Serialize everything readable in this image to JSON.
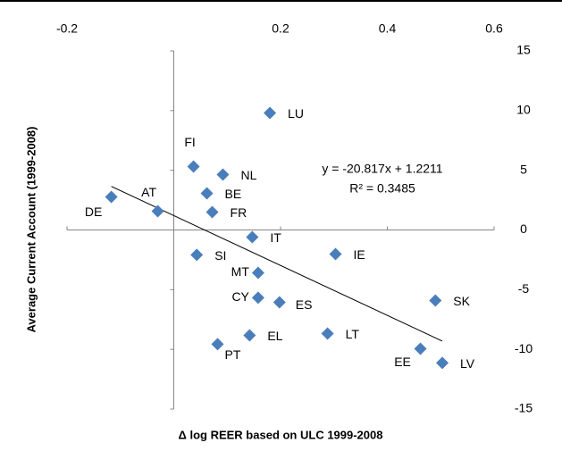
{
  "chart_data": {
    "type": "scatter",
    "x_label": "Δ log REER based on ULC 1999-2008",
    "y_label": "Average Current Account (1999-2008)",
    "annotations": [
      "y = -20.817x + 1.2211",
      "R² = 0.3485"
    ],
    "labels": [
      "DE",
      "AT",
      "FI",
      "NL",
      "BE",
      "FR",
      "LU",
      "IT",
      "SI",
      "IE",
      "MT",
      "CY",
      "ES",
      "SK",
      "PT",
      "EL",
      "LT",
      "EE",
      "LV"
    ],
    "x": [
      -0.117,
      -0.03,
      0.037,
      0.092,
      0.062,
      0.072,
      0.18,
      0.147,
      0.043,
      0.303,
      0.158,
      0.158,
      0.198,
      0.49,
      0.082,
      0.142,
      0.288,
      0.462,
      0.503
    ],
    "y": [
      2.77,
      1.57,
      5.31,
      4.64,
      3.07,
      1.5,
      9.8,
      -0.6,
      -2.09,
      -2.02,
      -3.59,
      -5.68,
      -6.06,
      -5.91,
      -9.57,
      -8.83,
      -8.68,
      -9.95,
      -11.14
    ],
    "color": "#4a7ebb",
    "xlim": [
      -0.2,
      0.6
    ],
    "xticks": [
      -0.2,
      0.2,
      0.4,
      0.6
    ],
    "ylim": [
      -15,
      15
    ],
    "yticks": [
      15,
      10,
      5,
      0,
      -5,
      -10,
      -15
    ],
    "trendline": true
  }
}
